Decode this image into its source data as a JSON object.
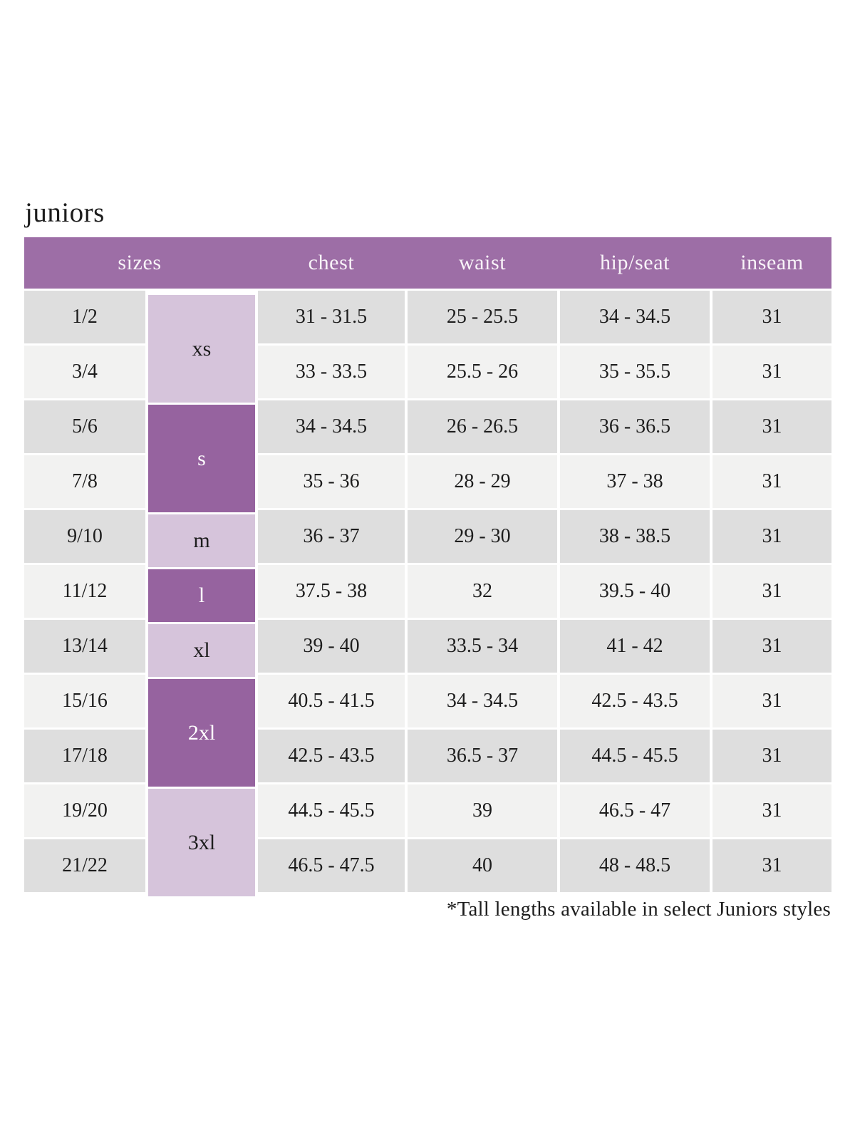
{
  "page": {
    "title": "juniors",
    "footnote": "*Tall lengths available in select Juniors styles"
  },
  "colors": {
    "header_bg": "#9d6ea6",
    "header_text": "#f8f3f8",
    "size_dark_bg": "#96639f",
    "size_light_bg": "#d6c4db",
    "row_even_bg": "#dedede",
    "row_odd_bg": "#f2f2f1",
    "text": "#1d1d1d"
  },
  "chart_data": {
    "type": "table",
    "title": "juniors",
    "headers": [
      {
        "label": "sizes",
        "span": 2
      },
      {
        "label": "chest",
        "span": 1
      },
      {
        "label": "waist",
        "span": 1
      },
      {
        "label": "hip/seat",
        "span": 1
      },
      {
        "label": "inseam",
        "span": 1
      }
    ],
    "size_groups": [
      {
        "label": "xs",
        "rows": 2,
        "tone": "light"
      },
      {
        "label": "s",
        "rows": 2,
        "tone": "dark"
      },
      {
        "label": "m",
        "rows": 1,
        "tone": "light"
      },
      {
        "label": "l",
        "rows": 1,
        "tone": "dark"
      },
      {
        "label": "xl",
        "rows": 1,
        "tone": "light"
      },
      {
        "label": "2xl",
        "rows": 2,
        "tone": "dark"
      },
      {
        "label": "3xl",
        "rows": 2,
        "tone": "light"
      }
    ],
    "rows": [
      {
        "size": "1/2",
        "chest": "31 - 31.5",
        "waist": "25 - 25.5",
        "hip_seat": "34 - 34.5",
        "inseam": "31"
      },
      {
        "size": "3/4",
        "chest": "33 - 33.5",
        "waist": "25.5 - 26",
        "hip_seat": "35 - 35.5",
        "inseam": "31"
      },
      {
        "size": "5/6",
        "chest": "34 - 34.5",
        "waist": "26 - 26.5",
        "hip_seat": "36 - 36.5",
        "inseam": "31"
      },
      {
        "size": "7/8",
        "chest": "35 - 36",
        "waist": "28 - 29",
        "hip_seat": "37 - 38",
        "inseam": "31"
      },
      {
        "size": "9/10",
        "chest": "36 - 37",
        "waist": "29 - 30",
        "hip_seat": "38 - 38.5",
        "inseam": "31"
      },
      {
        "size": "11/12",
        "chest": "37.5 - 38",
        "waist": "32",
        "hip_seat": "39.5 - 40",
        "inseam": "31"
      },
      {
        "size": "13/14",
        "chest": "39 - 40",
        "waist": "33.5 - 34",
        "hip_seat": "41 - 42",
        "inseam": "31"
      },
      {
        "size": "15/16",
        "chest": "40.5 - 41.5",
        "waist": "34 - 34.5",
        "hip_seat": "42.5 - 43.5",
        "inseam": "31"
      },
      {
        "size": "17/18",
        "chest": "42.5 - 43.5",
        "waist": "36.5 - 37",
        "hip_seat": "44.5 - 45.5",
        "inseam": "31"
      },
      {
        "size": "19/20",
        "chest": "44.5 - 45.5",
        "waist": "39",
        "hip_seat": "46.5 - 47",
        "inseam": "31"
      },
      {
        "size": "21/22",
        "chest": "46.5 - 47.5",
        "waist": "40",
        "hip_seat": "48 - 48.5",
        "inseam": "31"
      }
    ],
    "footnote": "*Tall lengths available in select Juniors styles"
  }
}
